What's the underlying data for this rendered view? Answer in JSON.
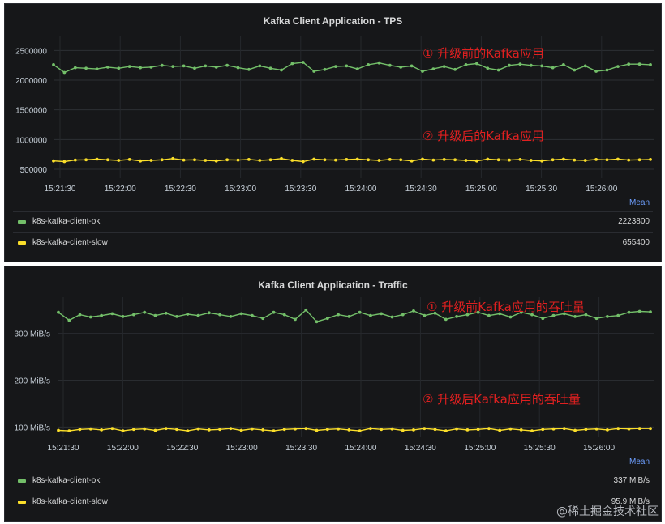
{
  "panels": [
    {
      "title": "Kafka Client Application - TPS",
      "annotations": [
        "① 升级前的Kafka应用",
        "② 升级后的Kafka应用"
      ],
      "legend_header": "Mean",
      "legend": [
        {
          "name": "k8s-kafka-client-ok",
          "value": "2223800",
          "color": "#73bf69"
        },
        {
          "name": "k8s-kafka-client-slow",
          "value": "655400",
          "color": "#fade2a"
        }
      ]
    },
    {
      "title": "Kafka Client Application - Traffic",
      "annotations": [
        "① 升级前Kafka应用的吞吐量",
        "② 升级后Kafka应用的吞吐量"
      ],
      "legend_header": "Mean",
      "legend": [
        {
          "name": "k8s-kafka-client-ok",
          "value": "337 MiB/s",
          "color": "#73bf69"
        },
        {
          "name": "k8s-kafka-client-slow",
          "value": "95.9 MiB/s",
          "color": "#fade2a"
        }
      ]
    }
  ],
  "chart_data": [
    {
      "type": "line",
      "title": "Kafka Client Application - TPS",
      "x_tick_labels": [
        "15:21:30",
        "15:22:00",
        "15:22:30",
        "15:23:00",
        "15:23:30",
        "15:24:00",
        "15:24:30",
        "15:25:00",
        "15:25:30",
        "15:26:00"
      ],
      "y_tick_labels": [
        "2500000",
        "2000000",
        "1500000",
        "1000000",
        "500000"
      ],
      "y_ticks": [
        2500000,
        2000000,
        1500000,
        1000000,
        500000
      ],
      "ylim": [
        350000,
        2600000
      ],
      "grid": true,
      "series": [
        {
          "name": "k8s-kafka-client-ok",
          "color": "#73bf69",
          "values": [
            2260000,
            2130000,
            2210000,
            2200000,
            2190000,
            2220000,
            2200000,
            2230000,
            2210000,
            2220000,
            2250000,
            2230000,
            2240000,
            2200000,
            2240000,
            2220000,
            2250000,
            2210000,
            2180000,
            2240000,
            2200000,
            2170000,
            2280000,
            2300000,
            2150000,
            2180000,
            2230000,
            2240000,
            2190000,
            2260000,
            2290000,
            2250000,
            2220000,
            2240000,
            2150000,
            2190000,
            2230000,
            2180000,
            2260000,
            2280000,
            2200000,
            2170000,
            2250000,
            2270000,
            2250000,
            2240000,
            2210000,
            2260000,
            2170000,
            2240000,
            2150000,
            2170000,
            2230000,
            2270000,
            2270000,
            2260000
          ]
        },
        {
          "name": "k8s-kafka-client-slow",
          "color": "#fade2a",
          "values": [
            640000,
            630000,
            655000,
            660000,
            670000,
            660000,
            650000,
            665000,
            640000,
            650000,
            660000,
            680000,
            655000,
            660000,
            650000,
            640000,
            660000,
            655000,
            665000,
            650000,
            660000,
            680000,
            650000,
            630000,
            670000,
            660000,
            655000,
            665000,
            670000,
            660000,
            650000,
            665000,
            660000,
            640000,
            670000,
            655000,
            665000,
            660000,
            650000,
            640000,
            670000,
            660000,
            655000,
            665000,
            650000,
            640000,
            660000,
            670000,
            655000,
            650000,
            665000,
            660000,
            670000,
            655000,
            660000,
            665000
          ]
        }
      ]
    },
    {
      "type": "line",
      "title": "Kafka Client Application - Traffic",
      "x_tick_labels": [
        "15:21:30",
        "15:22:00",
        "15:22:30",
        "15:23:00",
        "15:23:30",
        "15:24:00",
        "15:24:30",
        "15:25:00",
        "15:25:30",
        "15:26:00"
      ],
      "y_tick_labels": [
        "300 MiB/s",
        "200 MiB/s",
        "100 MiB/s"
      ],
      "y_ticks": [
        300,
        200,
        100
      ],
      "ylim": [
        80,
        360
      ],
      "grid": true,
      "series": [
        {
          "name": "k8s-kafka-client-ok",
          "color": "#73bf69",
          "values": [
            345,
            328,
            340,
            335,
            338,
            342,
            336,
            340,
            345,
            338,
            343,
            336,
            341,
            338,
            344,
            340,
            336,
            342,
            338,
            332,
            345,
            340,
            330,
            350,
            325,
            332,
            340,
            336,
            345,
            338,
            342,
            335,
            340,
            348,
            338,
            343,
            330,
            336,
            340,
            345,
            338,
            342,
            335,
            345,
            340,
            332,
            338,
            342,
            336,
            340,
            332,
            336,
            338,
            345,
            347,
            346
          ]
        },
        {
          "name": "k8s-kafka-client-slow",
          "color": "#fade2a",
          "values": [
            93,
            92,
            95,
            96,
            94,
            97,
            92,
            95,
            96,
            93,
            97,
            95,
            92,
            96,
            94,
            95,
            97,
            93,
            96,
            94,
            92,
            95,
            96,
            97,
            93,
            95,
            96,
            94,
            92,
            97,
            95,
            96,
            93,
            94,
            97,
            95,
            92,
            96,
            94,
            95,
            97,
            93,
            96,
            94,
            92,
            95,
            96,
            97,
            93,
            95,
            96,
            94,
            97,
            96,
            97,
            97
          ]
        }
      ]
    }
  ],
  "watermark": "@稀土掘金技术社区"
}
